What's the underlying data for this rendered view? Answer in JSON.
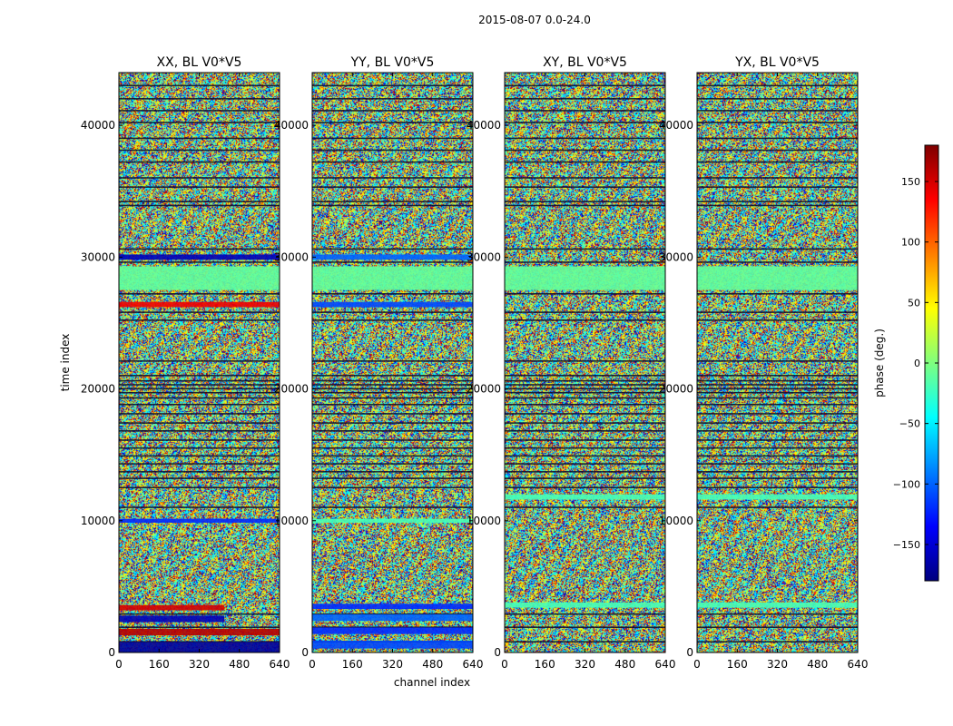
{
  "figure": {
    "suptitle": "2015-08-07 0.0-24.0"
  },
  "chart_data": [
    {
      "type": "heatmap",
      "title": "XX, BL V0*V5",
      "xlabel": "",
      "ylabel": "time index",
      "xlim": [
        0,
        640
      ],
      "ylim": [
        0,
        44000
      ],
      "xticks": [
        "0",
        "160",
        "320",
        "480",
        "640"
      ],
      "yticks": [
        "0",
        "10000",
        "20000",
        "30000",
        "40000"
      ],
      "value_range": [
        -180,
        180
      ],
      "value_unit": "phase (deg.)",
      "features": [
        {
          "type": "band",
          "y": [
            0,
            800
          ],
          "x": [
            0,
            640
          ],
          "value": -170
        },
        {
          "type": "band",
          "y": [
            1300,
            1800
          ],
          "x": [
            0,
            640
          ],
          "value": 160
        },
        {
          "type": "band",
          "y": [
            2300,
            2800
          ],
          "x": [
            0,
            420
          ],
          "value": -160
        },
        {
          "type": "band",
          "y": [
            3200,
            3600
          ],
          "x": [
            0,
            420
          ],
          "value": 150
        },
        {
          "type": "band",
          "y": [
            9850,
            10150
          ],
          "x": [
            0,
            640
          ],
          "value": -120
        },
        {
          "type": "band",
          "y": [
            26200,
            26600
          ],
          "x": [
            0,
            640
          ],
          "value": 140
        },
        {
          "type": "band",
          "y": [
            27500,
            29300
          ],
          "x": [
            0,
            640
          ],
          "value": -10
        },
        {
          "type": "band",
          "y": [
            29800,
            30200
          ],
          "x": [
            0,
            640
          ],
          "value": -160
        }
      ]
    },
    {
      "type": "heatmap",
      "title": "YY, BL V0*V5",
      "xlabel": "channel index",
      "ylabel": "",
      "xlim": [
        0,
        640
      ],
      "ylim": [
        0,
        44000
      ],
      "xticks": [
        "0",
        "160",
        "320",
        "480",
        "640"
      ],
      "yticks": [
        "0",
        "10000",
        "20000",
        "30000",
        "40000"
      ],
      "value_range": [
        -180,
        180
      ],
      "value_unit": "phase (deg.)",
      "features": [
        {
          "type": "band",
          "y": [
            300,
            900
          ],
          "x": [
            0,
            640
          ],
          "value": -110
        },
        {
          "type": "band",
          "y": [
            1400,
            1900
          ],
          "x": [
            0,
            640
          ],
          "value": -120
        },
        {
          "type": "band",
          "y": [
            2400,
            2900
          ],
          "x": [
            0,
            640
          ],
          "value": -100
        },
        {
          "type": "band",
          "y": [
            3300,
            3700
          ],
          "x": [
            0,
            640
          ],
          "value": -120
        },
        {
          "type": "band",
          "y": [
            9850,
            10150
          ],
          "x": [
            0,
            640
          ],
          "value": -20
        },
        {
          "type": "band",
          "y": [
            26200,
            26600
          ],
          "x": [
            0,
            640
          ],
          "value": -110
        },
        {
          "type": "band",
          "y": [
            27500,
            29300
          ],
          "x": [
            0,
            640
          ],
          "value": -10
        },
        {
          "type": "band",
          "y": [
            29800,
            30200
          ],
          "x": [
            0,
            640
          ],
          "value": -100
        }
      ]
    },
    {
      "type": "heatmap",
      "title": "XY, BL V0*V5",
      "xlabel": "",
      "ylabel": "",
      "xlim": [
        0,
        640
      ],
      "ylim": [
        0,
        44000
      ],
      "xticks": [
        "0",
        "160",
        "320",
        "480",
        "640"
      ],
      "yticks": [
        "0",
        "10000",
        "20000",
        "30000",
        "40000"
      ],
      "value_range": [
        -180,
        180
      ],
      "value_unit": "phase (deg.)",
      "features": [
        {
          "type": "band",
          "y": [
            3400,
            3800
          ],
          "x": [
            0,
            640
          ],
          "value": -20
        },
        {
          "type": "band",
          "y": [
            11600,
            12000
          ],
          "x": [
            0,
            640
          ],
          "value": -20
        },
        {
          "type": "band",
          "y": [
            27500,
            29300
          ],
          "x": [
            0,
            640
          ],
          "value": -10
        }
      ]
    },
    {
      "type": "heatmap",
      "title": "YX, BL V0*V5",
      "xlabel": "",
      "ylabel": "",
      "xlim": [
        0,
        640
      ],
      "ylim": [
        0,
        44000
      ],
      "xticks": [
        "0",
        "160",
        "320",
        "480",
        "640"
      ],
      "yticks": [
        "0",
        "10000",
        "20000",
        "30000",
        "40000"
      ],
      "value_range": [
        -180,
        180
      ],
      "value_unit": "phase (deg.)",
      "features": [
        {
          "type": "band",
          "y": [
            3400,
            3800
          ],
          "x": [
            0,
            640
          ],
          "value": -20
        },
        {
          "type": "band",
          "y": [
            11600,
            12000
          ],
          "x": [
            0,
            640
          ],
          "value": -20
        },
        {
          "type": "band",
          "y": [
            27500,
            29300
          ],
          "x": [
            0,
            640
          ],
          "value": -10
        }
      ]
    }
  ],
  "colorbar": {
    "label": "phase (deg.)",
    "range": [
      -180,
      180
    ],
    "ticks": [
      150,
      100,
      50,
      0,
      -50,
      -100,
      -150
    ],
    "tick_labels": [
      "150",
      "100",
      "50",
      "0",
      "−50",
      "−100",
      "−150"
    ],
    "colormap": "jet",
    "colors": [
      "#00007f",
      "#0000ff",
      "#007fff",
      "#00ffff",
      "#7fff7f",
      "#ffff00",
      "#ff7f00",
      "#ff0000",
      "#7f0000"
    ]
  },
  "dark_rows": [
    800,
    1900,
    2900,
    11000,
    12500,
    13200,
    13700,
    14300,
    14900,
    15500,
    16100,
    16800,
    17400,
    18100,
    18800,
    19300,
    19700,
    20000,
    20300,
    20600,
    21000,
    22100,
    25200,
    25800,
    27200,
    29600,
    30600,
    33900,
    34200,
    35300,
    36000,
    37200,
    38100,
    39000,
    40200,
    41100,
    42000,
    43000
  ]
}
